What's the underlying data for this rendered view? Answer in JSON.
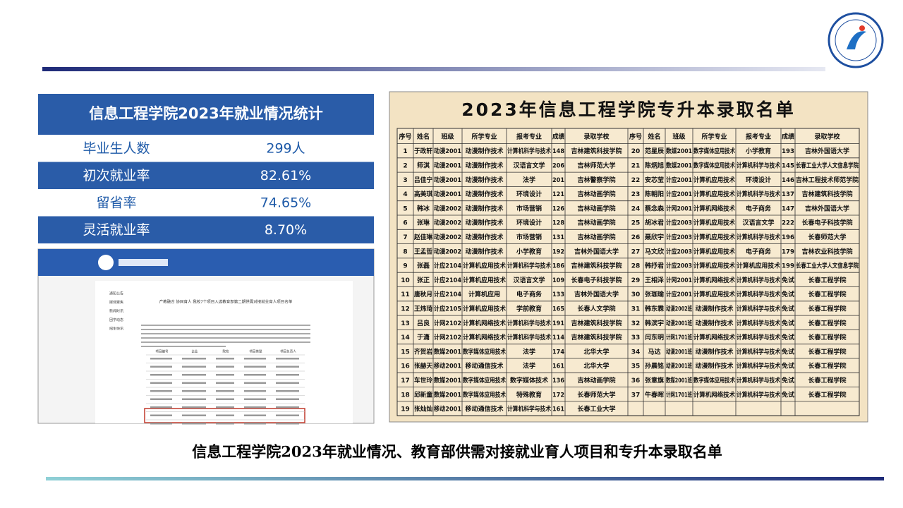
{
  "stats": {
    "title": "信息工程学院2023年就业情况统计",
    "rows": [
      [
        "毕业生人数",
        "299人"
      ],
      [
        "初次就业率",
        "82.61%"
      ],
      [
        "留省率",
        "74.65%"
      ],
      [
        "灵活就业率",
        "8.70%"
      ]
    ]
  },
  "web": {
    "sidebar": [
      "通知公告",
      "媒体聚焦",
      "新闻时讯",
      "团学动态",
      "招生快讯"
    ],
    "headline": "产教融合 协同育人 我校7个项目入选教育部第二期供需对接就业育人项目名单",
    "columns": [
      "项目编号",
      "企业",
      "院校",
      "项目类型",
      "项目负责人"
    ]
  },
  "table": {
    "title": "2023年信息工程学院专升本录取名单",
    "header": [
      "序号",
      "姓名",
      "班级",
      "所学专业",
      "报考专业",
      "成绩",
      "录取学校",
      "序号",
      "姓名",
      "班级",
      "所学专业",
      "报考专业",
      "成绩",
      "录取学校"
    ],
    "rows": [
      [
        "1",
        "于政轩",
        "动漫2001",
        "动漫制作技术",
        "计算机科学与技术",
        "148",
        "吉林建筑科技学院",
        "20",
        "范星辰",
        "数媒2001",
        "数字媒体应用技术",
        "小学教育",
        "193",
        "吉林外国语大学"
      ],
      [
        "2",
        "师淇",
        "动漫2001",
        "动漫制作技术",
        "汉语言文学",
        "206",
        "吉林师范大学",
        "21",
        "陈炳旭",
        "数媒2001",
        "数字媒体应用技术",
        "计算机科学与技术",
        "145",
        "长春工业大学人文信息学院"
      ],
      [
        "3",
        "吕佳宁",
        "动漫2001",
        "动漫制作技术",
        "法学",
        "201",
        "吉林警察学院",
        "22",
        "安芯莹",
        "计应2001",
        "计算机应用技术",
        "环境设计",
        "146",
        "吉林工程技术师范学院"
      ],
      [
        "4",
        "高美琪",
        "动漫2001",
        "动漫制作技术",
        "环境设计",
        "121",
        "吉林动画学院",
        "23",
        "陈朝阳",
        "计应2001",
        "计算机应用技术",
        "计算机科学与技术",
        "137",
        "吉林建筑科技学院"
      ],
      [
        "5",
        "韩冰",
        "动漫2002",
        "动漫制作技术",
        "市场营销",
        "126",
        "吉林动画学院",
        "24",
        "蔡念森",
        "计网2001",
        "计算机网络技术",
        "电子商务",
        "147",
        "吉林外国语大学"
      ],
      [
        "6",
        "张琳",
        "动漫2002",
        "动漫制作技术",
        "环境设计",
        "128",
        "吉林动画学院",
        "25",
        "胡冰君",
        "计应2003",
        "计算机应用技术",
        "汉语言文学",
        "222",
        "长春电子科技学院"
      ],
      [
        "7",
        "赵佳琳",
        "动漫2002",
        "动漫制作技术",
        "市场营销",
        "131",
        "吉林动画学院",
        "26",
        "聂欣宇",
        "计应2003",
        "计算机应用技术",
        "计算机科学与技术",
        "196",
        "长春师范大学"
      ],
      [
        "8",
        "王孟哲",
        "动漫2002",
        "动漫制作技术",
        "小学教育",
        "192",
        "吉林外国语大学",
        "27",
        "马文欣",
        "计应2003",
        "计算机应用技术",
        "电子商务",
        "179",
        "吉林农业科技学院"
      ],
      [
        "9",
        "张磊",
        "计应2104",
        "计算机应用技术",
        "计算机科学与技术",
        "186",
        "吉林建筑科技学院",
        "28",
        "韩抒君",
        "计应2003",
        "计算机应用技术",
        "计算机应用技术",
        "199",
        "长春工业大学人文信息学院"
      ],
      [
        "10",
        "张正",
        "计应2104",
        "计算机应用技术",
        "汉语言文学",
        "109",
        "长春电子科技学院",
        "29",
        "王相泽",
        "计网2001",
        "计算机网络技术",
        "计算机科学与技术",
        "免试",
        "长春工程学院"
      ],
      [
        "11",
        "唐秋月",
        "计应2104",
        "计算机应用",
        "电子商务",
        "133",
        "吉林外国语大学",
        "30",
        "张珈瑜",
        "计应2001",
        "计算机应用技术",
        "计算机科学与技术",
        "免试",
        "长春工程学院"
      ],
      [
        "12",
        "王炜琦",
        "计应2105",
        "计算机应用技术",
        "学前教育",
        "165",
        "长春人文学院",
        "31",
        "韩东霖",
        "动漫2002班",
        "动漫制作技术",
        "计算机科学与技术",
        "免试",
        "长春工程学院"
      ],
      [
        "13",
        "吕良",
        "计网2102",
        "计算机网络技术",
        "计算机科学与技术",
        "191",
        "吉林建筑科技学院",
        "32",
        "韩滨宇",
        "动漫2001班",
        "动漫制作技术",
        "计算机科学与技术",
        "免试",
        "长春工程学院"
      ],
      [
        "14",
        "于潇",
        "计网2102",
        "计算机网络技术",
        "计算机科学与技术",
        "114",
        "吉林建筑科技学院",
        "33",
        "闫东明",
        "计网1701班",
        "计算机网络技术",
        "计算机科学与技术",
        "免试",
        "长春工程学院"
      ],
      [
        "15",
        "齐贺岩",
        "数媒2001",
        "数字媒体应用技术",
        "法学",
        "174",
        "北华大学",
        "34",
        "马达",
        "动漫2001班",
        "动漫制作技术",
        "计算机科学与技术",
        "免试",
        "长春工程学院"
      ],
      [
        "16",
        "张赫天",
        "移动2001",
        "移动通信技术",
        "法学",
        "161",
        "北华大学",
        "35",
        "孙晨铭",
        "动漫2001班",
        "动漫制作技术",
        "计算机科学与技术",
        "免试",
        "长春工程学院"
      ],
      [
        "17",
        "车世玲",
        "数媒2001",
        "数字媒体应用技术",
        "数字媒体技术",
        "136",
        "吉林动画学院",
        "36",
        "张意旗",
        "数媒2001班",
        "数字媒体应用技术",
        "计算机科学与技术",
        "免试",
        "长春工程学院"
      ],
      [
        "18",
        "邱新童",
        "数媒2001",
        "数字媒体应用技术",
        "特殊教育",
        "172",
        "长春师范大学",
        "37",
        "牛春晖",
        "计网1701班",
        "计算机网络技术",
        "计算机科学与技术",
        "免试",
        "长春工程学院"
      ],
      [
        "19",
        "张灿灿",
        "移动2001",
        "移动通信技术",
        "计算机科学与技术",
        "161",
        "长春工业大学"
      ]
    ]
  },
  "caption": "信息工程学院2023年就业情况、教育部供需对接就业育人项目和专升本录取名单"
}
